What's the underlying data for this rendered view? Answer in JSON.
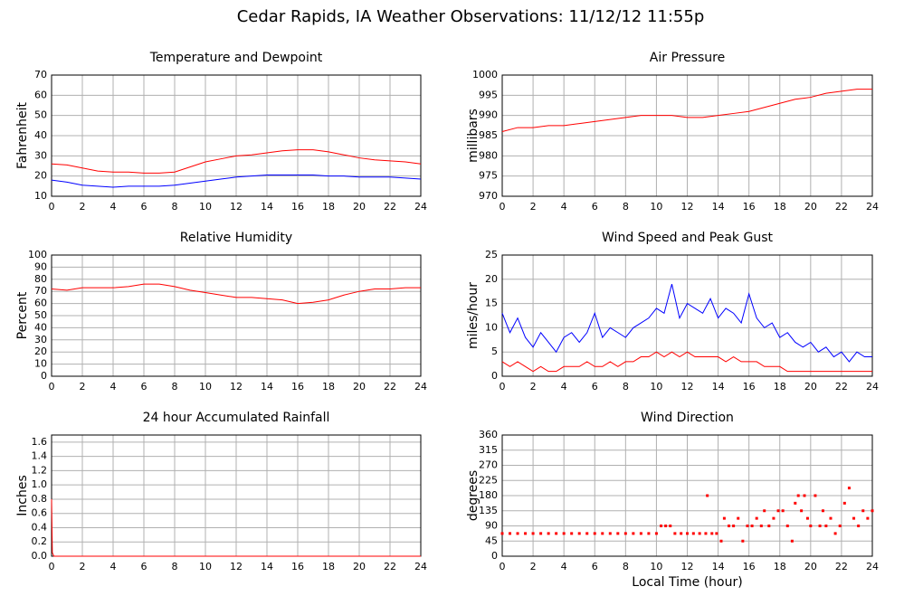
{
  "title": "Cedar Rapids, IA Weather Observations: 11/12/12 11:55p",
  "chart_data": [
    {
      "type": "line",
      "title": "Temperature and Dewpoint",
      "ylabel": "Fahrenheit",
      "x": [
        0,
        1,
        2,
        3,
        4,
        5,
        6,
        7,
        8,
        9,
        10,
        11,
        12,
        13,
        14,
        15,
        16,
        17,
        18,
        19,
        20,
        21,
        22,
        23,
        24
      ],
      "series": [
        {
          "color": "#ff0000",
          "values": [
            26,
            25.5,
            24,
            22.5,
            22,
            22,
            21.5,
            21.5,
            22,
            24.5,
            27,
            28.5,
            30,
            30.5,
            31.5,
            32.5,
            33,
            33,
            32,
            30.5,
            29,
            28,
            27.5,
            27,
            26
          ]
        },
        {
          "color": "#0000ff",
          "values": [
            18,
            17,
            15.5,
            15,
            14.5,
            15,
            15,
            15,
            15.5,
            16.5,
            17.5,
            18.5,
            19.5,
            20,
            20.5,
            20.5,
            20.5,
            20.5,
            20,
            20,
            19.5,
            19.5,
            19.5,
            19,
            18.5
          ]
        }
      ],
      "xlim": [
        0,
        24
      ],
      "xticks": [
        0,
        2,
        4,
        6,
        8,
        10,
        12,
        14,
        16,
        18,
        20,
        22,
        24
      ],
      "ylim": [
        10,
        70
      ],
      "yticks": [
        10,
        20,
        30,
        40,
        50,
        60,
        70
      ],
      "grid": true
    },
    {
      "type": "line",
      "title": "Air Pressure",
      "ylabel": "millibars",
      "x": [
        0,
        1,
        2,
        3,
        4,
        5,
        6,
        7,
        8,
        9,
        10,
        11,
        12,
        13,
        14,
        15,
        16,
        17,
        18,
        19,
        20,
        21,
        22,
        23,
        24
      ],
      "series": [
        {
          "color": "#ff0000",
          "values": [
            986,
            987,
            987,
            987.5,
            987.5,
            988,
            988.5,
            989,
            989.5,
            990,
            990,
            990,
            989.5,
            989.5,
            990,
            990.5,
            991,
            992,
            993,
            994,
            994.5,
            995.5,
            996,
            996.5,
            996.5
          ]
        }
      ],
      "xlim": [
        0,
        24
      ],
      "xticks": [
        0,
        2,
        4,
        6,
        8,
        10,
        12,
        14,
        16,
        18,
        20,
        22,
        24
      ],
      "ylim": [
        970,
        1000
      ],
      "yticks": [
        970,
        975,
        980,
        985,
        990,
        995,
        1000
      ],
      "grid": true
    },
    {
      "type": "line",
      "title": "Relative Humidity",
      "ylabel": "Percent",
      "x": [
        0,
        1,
        2,
        3,
        4,
        5,
        6,
        7,
        8,
        9,
        10,
        11,
        12,
        13,
        14,
        15,
        16,
        17,
        18,
        19,
        20,
        21,
        22,
        23,
        24
      ],
      "series": [
        {
          "color": "#ff0000",
          "values": [
            72,
            71,
            73,
            73,
            73,
            74,
            76,
            76,
            74,
            71,
            69,
            67,
            65,
            65,
            64,
            63,
            60,
            61,
            63,
            67,
            70,
            72,
            72,
            73,
            73
          ]
        }
      ],
      "xlim": [
        0,
        24
      ],
      "xticks": [
        0,
        2,
        4,
        6,
        8,
        10,
        12,
        14,
        16,
        18,
        20,
        22,
        24
      ],
      "ylim": [
        0,
        100
      ],
      "yticks": [
        0,
        10,
        20,
        30,
        40,
        50,
        60,
        70,
        80,
        90,
        100
      ],
      "grid": true
    },
    {
      "type": "line",
      "title": "Wind Speed and Peak Gust",
      "ylabel": "miles/hour",
      "x": [
        0,
        0.5,
        1,
        1.5,
        2,
        2.5,
        3,
        3.5,
        4,
        4.5,
        5,
        5.5,
        6,
        6.5,
        7,
        7.5,
        8,
        8.5,
        9,
        9.5,
        10,
        10.5,
        11,
        11.5,
        12,
        12.5,
        13,
        13.5,
        14,
        14.5,
        15,
        15.5,
        16,
        16.5,
        17,
        17.5,
        18,
        18.5,
        19,
        19.5,
        20,
        20.5,
        21,
        21.5,
        22,
        22.5,
        23,
        23.5,
        24
      ],
      "series": [
        {
          "color": "#0000ff",
          "values": [
            13,
            9,
            12,
            8,
            6,
            9,
            7,
            5,
            8,
            9,
            7,
            9,
            13,
            8,
            10,
            9,
            8,
            10,
            11,
            12,
            14,
            13,
            19,
            12,
            15,
            14,
            13,
            16,
            12,
            14,
            13,
            11,
            17,
            12,
            10,
            11,
            8,
            9,
            7,
            6,
            7,
            5,
            6,
            4,
            5,
            3,
            5,
            4,
            4
          ]
        },
        {
          "color": "#ff0000",
          "values": [
            3,
            2,
            3,
            2,
            1,
            2,
            1,
            1,
            2,
            2,
            2,
            3,
            2,
            2,
            3,
            2,
            3,
            3,
            4,
            4,
            5,
            4,
            5,
            4,
            5,
            4,
            4,
            4,
            4,
            3,
            4,
            3,
            3,
            3,
            2,
            2,
            2,
            1,
            1,
            1,
            1,
            1,
            1,
            1,
            1,
            1,
            1,
            1,
            1
          ]
        }
      ],
      "xlim": [
        0,
        24
      ],
      "xticks": [
        0,
        2,
        4,
        6,
        8,
        10,
        12,
        14,
        16,
        18,
        20,
        22,
        24
      ],
      "ylim": [
        0,
        25
      ],
      "yticks": [
        0,
        5,
        10,
        15,
        20,
        25
      ],
      "grid": true
    },
    {
      "type": "line",
      "title": "24 hour Accumulated Rainfall",
      "ylabel": "Inches",
      "x": [
        0,
        0.05,
        0.15,
        24
      ],
      "series": [
        {
          "color": "#ff0000",
          "values": [
            0.8,
            0.05,
            0,
            0
          ]
        }
      ],
      "xlim": [
        0,
        24
      ],
      "xticks": [
        0,
        2,
        4,
        6,
        8,
        10,
        12,
        14,
        16,
        18,
        20,
        22,
        24
      ],
      "ylim": [
        0,
        1.7
      ],
      "yticks": [
        {
          "value": 0,
          "label": "0.0"
        },
        0.2,
        0.4,
        0.6,
        0.8,
        {
          "value": 1,
          "label": "1.0"
        },
        1.2,
        1.4,
        1.6
      ],
      "grid": true
    },
    {
      "type": "scatter",
      "title": "Wind Direction",
      "ylabel": "degrees",
      "xlabel": "Local Time (hour)",
      "x": [
        0,
        0.5,
        1,
        1.5,
        2,
        2.5,
        3,
        3.5,
        4,
        4.5,
        5,
        5.5,
        6,
        6.5,
        7,
        7.5,
        8,
        8.5,
        9,
        9.5,
        10,
        10.3,
        10.6,
        10.9,
        11.2,
        11.6,
        12,
        12.4,
        12.8,
        13.2,
        13.3,
        13.6,
        13.9,
        14.2,
        14.4,
        14.7,
        15,
        15.3,
        15.6,
        15.9,
        16.2,
        16.5,
        16.8,
        17,
        17.3,
        17.6,
        17.9,
        18.2,
        18.5,
        18.8,
        19,
        19.2,
        19.4,
        19.6,
        19.8,
        20,
        20.3,
        20.6,
        20.8,
        21,
        21.3,
        21.6,
        21.9,
        22.2,
        22.5,
        22.8,
        23.1,
        23.4,
        23.7,
        24
      ],
      "values": [
        67.5,
        67.5,
        67.5,
        67.5,
        67.5,
        67.5,
        67.5,
        67.5,
        67.5,
        67.5,
        67.5,
        67.5,
        67.5,
        67.5,
        67.5,
        67.5,
        67.5,
        67.5,
        67.5,
        67.5,
        67.5,
        90,
        90,
        90,
        67.5,
        67.5,
        67.5,
        67.5,
        67.5,
        67.5,
        180,
        67.5,
        67.5,
        45,
        112.5,
        90,
        90,
        112.5,
        45,
        90,
        90,
        112.5,
        90,
        135,
        90,
        112.5,
        135,
        135,
        90,
        45,
        157.5,
        180,
        135,
        180,
        112.5,
        90,
        180,
        90,
        135,
        90,
        112.5,
        67.5,
        90,
        157.5,
        202.5,
        112.5,
        90,
        135,
        112.5,
        135
      ],
      "color": "#ff0000",
      "xlim": [
        0,
        24
      ],
      "xticks": [
        0,
        2,
        4,
        6,
        8,
        10,
        12,
        14,
        16,
        18,
        20,
        22,
        24
      ],
      "ylim": [
        0,
        360
      ],
      "yticks": [
        0,
        45,
        90,
        135,
        180,
        225,
        270,
        315,
        360
      ],
      "grid": true
    }
  ]
}
